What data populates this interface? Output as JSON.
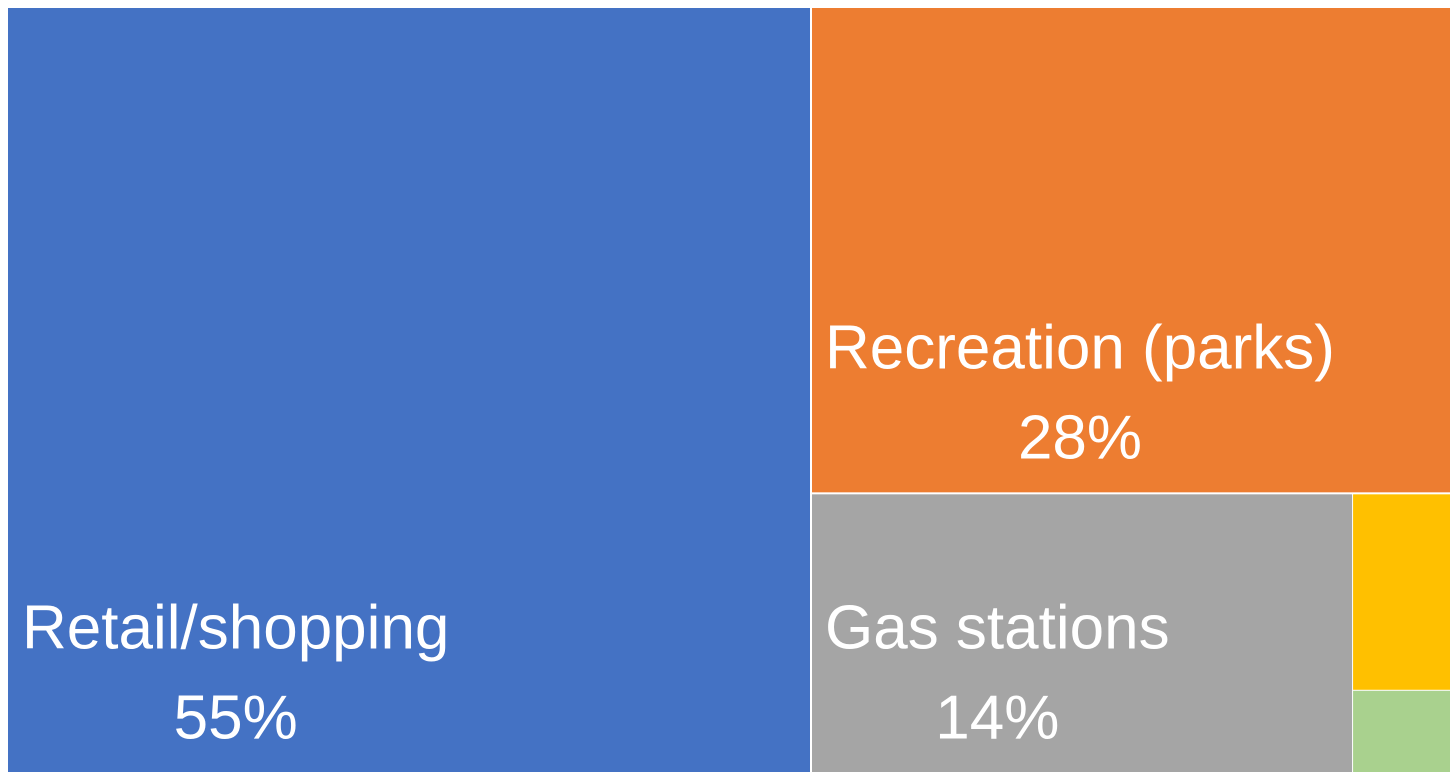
{
  "chart_data": {
    "type": "treemap",
    "categories": [
      "Retail/shopping",
      "Recreation (parks)",
      "Gas stations",
      null,
      null
    ],
    "values": [
      55,
      28,
      14,
      2,
      1
    ],
    "value_labels": [
      "55%",
      "28%",
      "14%",
      null,
      null
    ],
    "colors": [
      "#4472c4",
      "#ed7d31",
      "#a5a5a5",
      "#ffc000",
      "#a9d18e"
    ]
  }
}
